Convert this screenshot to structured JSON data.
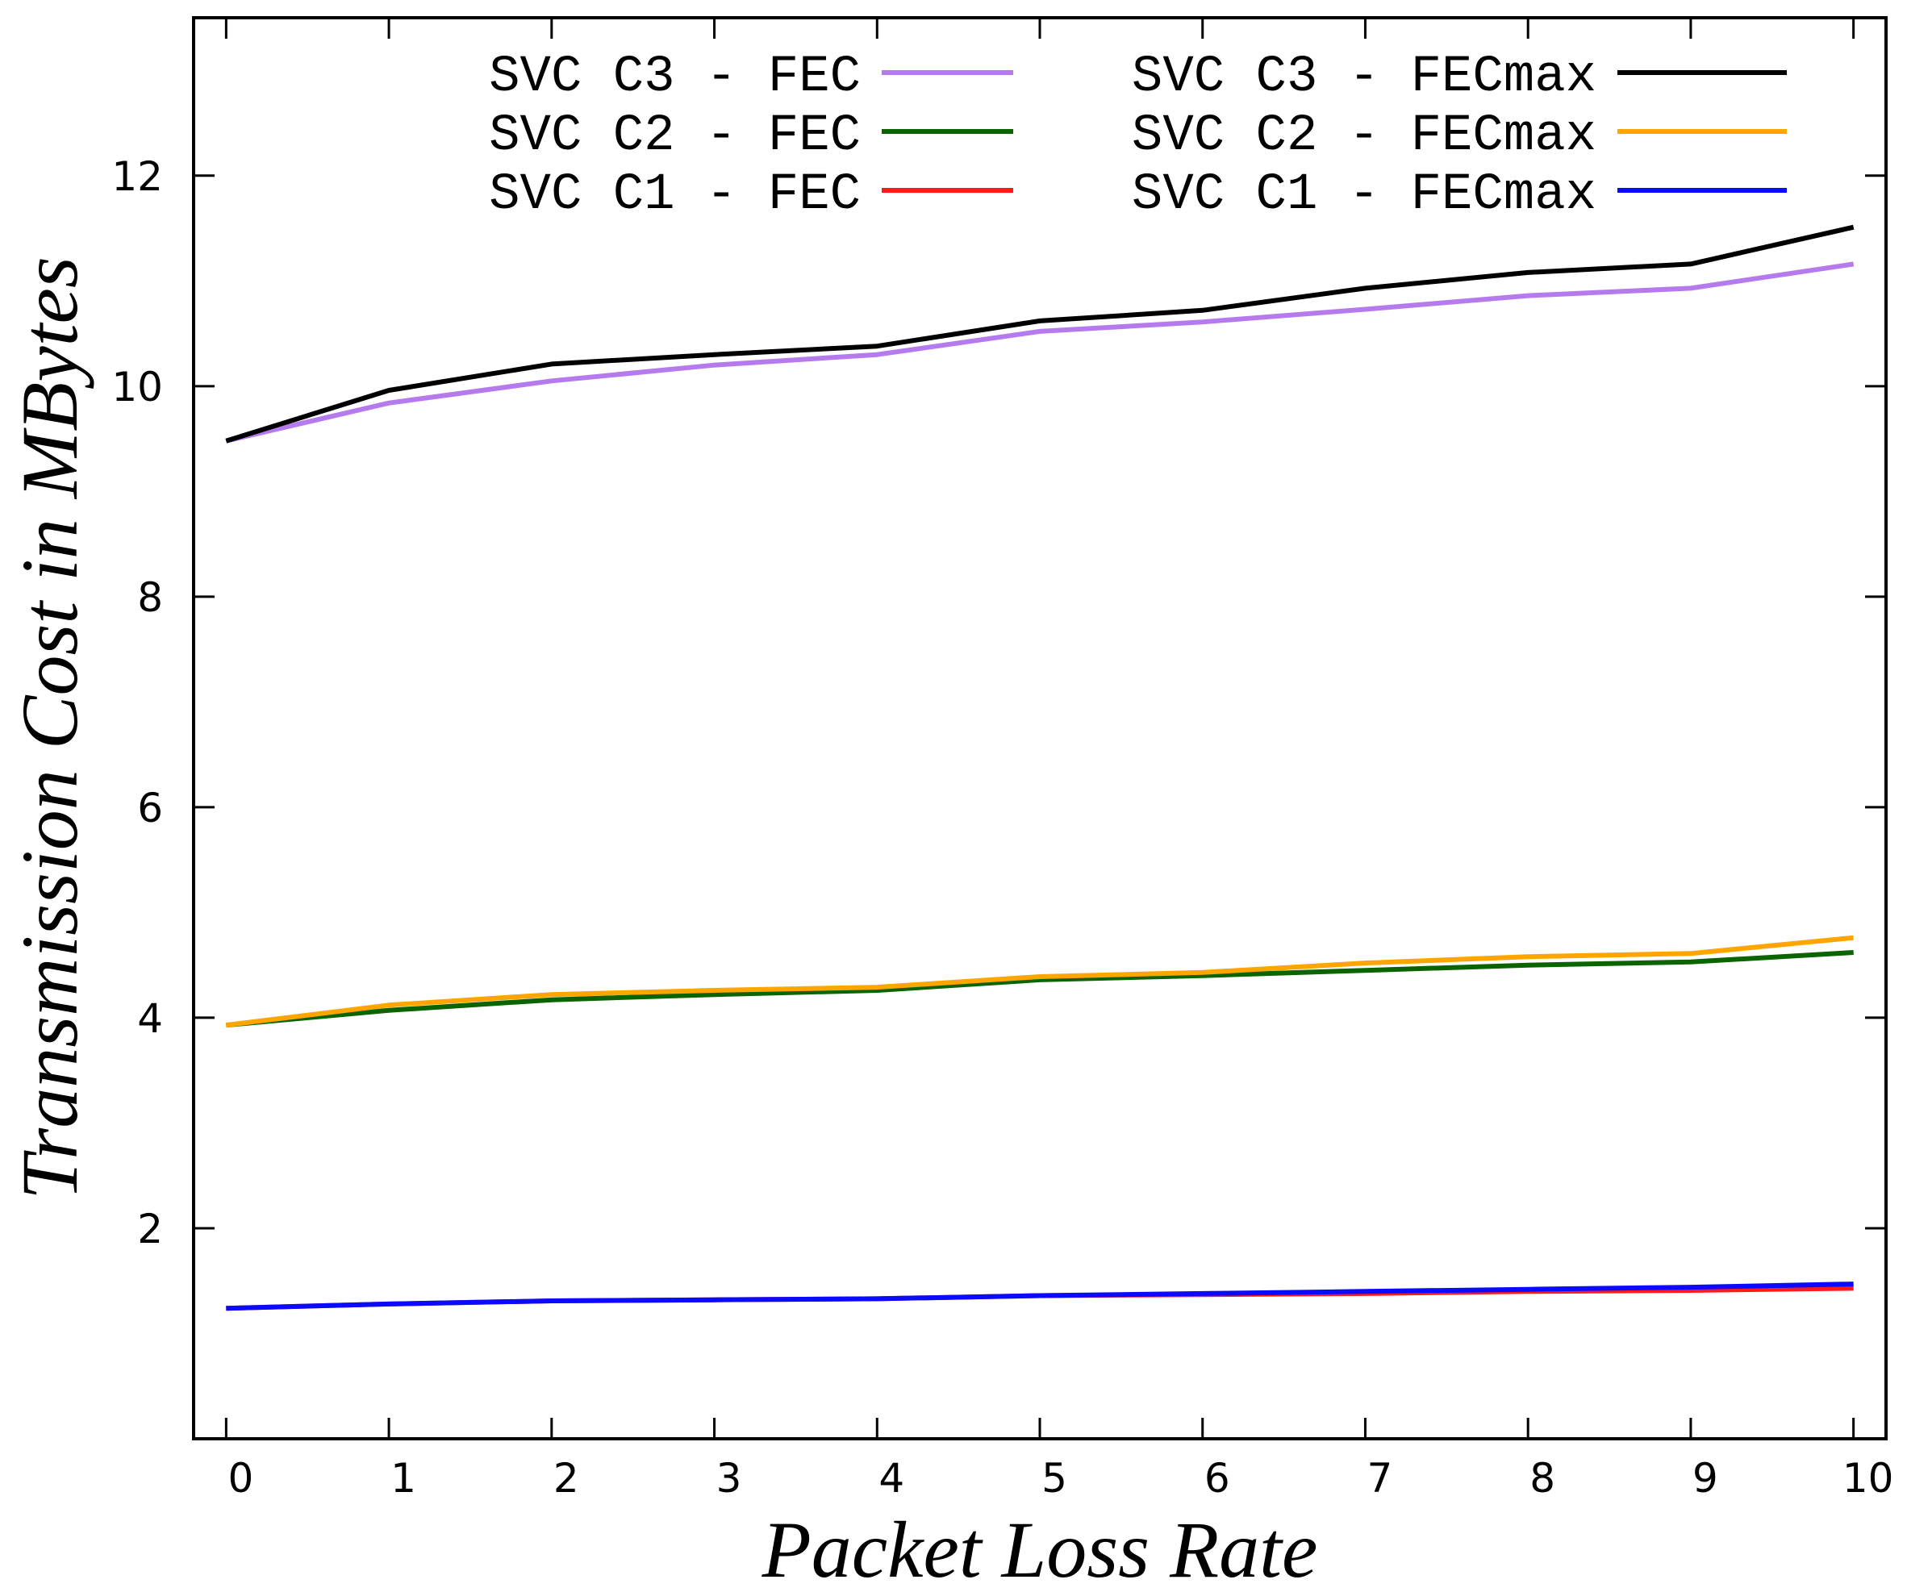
{
  "chart_data": {
    "type": "line",
    "xlabel": "Packet Loss Rate",
    "ylabel": "Transmission Cost in MBytes",
    "xlim": [
      -0.2,
      10.2
    ],
    "ylim": [
      0,
      13.5
    ],
    "xticks": [
      0,
      1,
      2,
      3,
      4,
      5,
      6,
      7,
      8,
      9,
      10
    ],
    "yticks": [
      2,
      4,
      6,
      8,
      10,
      12
    ],
    "x": [
      0,
      1,
      2,
      3,
      4,
      5,
      6,
      7,
      8,
      9,
      10
    ],
    "grid": false,
    "legend_position": "top",
    "series": [
      {
        "name": "SVC C3 - FEC",
        "color": "#b57bee",
        "values": [
          9.48,
          9.84,
          10.05,
          10.2,
          10.3,
          10.52,
          10.61,
          10.73,
          10.86,
          10.93,
          11.16
        ]
      },
      {
        "name": "SVC C2 - FEC",
        "color": "#0b6400",
        "values": [
          3.93,
          4.07,
          4.17,
          4.22,
          4.26,
          4.36,
          4.4,
          4.45,
          4.5,
          4.53,
          4.62
        ]
      },
      {
        "name": "SVC C1 - FEC",
        "color": "#ff1a1a",
        "values": [
          1.24,
          1.28,
          1.31,
          1.32,
          1.33,
          1.36,
          1.37,
          1.38,
          1.4,
          1.41,
          1.43
        ]
      },
      {
        "name": "SVC C3 - FECmax",
        "color": "#000000",
        "values": [
          9.48,
          9.96,
          10.21,
          10.3,
          10.38,
          10.62,
          10.72,
          10.93,
          11.08,
          11.16,
          11.51
        ]
      },
      {
        "name": "SVC C2 - FECmax",
        "color": "#ffa500",
        "values": [
          3.93,
          4.12,
          4.22,
          4.26,
          4.29,
          4.39,
          4.43,
          4.52,
          4.58,
          4.61,
          4.76
        ]
      },
      {
        "name": "SVC C1 - FECmax",
        "color": "#0a0aff",
        "values": [
          1.24,
          1.28,
          1.31,
          1.32,
          1.33,
          1.36,
          1.38,
          1.4,
          1.42,
          1.44,
          1.47
        ]
      }
    ]
  }
}
